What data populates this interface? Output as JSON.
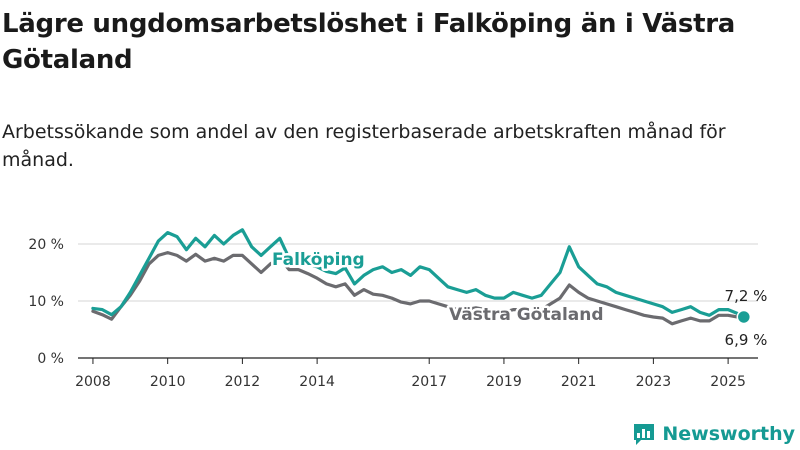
{
  "title": "Lägre ungdomsarbetslöshet i Falköping än i Västra Götaland",
  "subtitle": "Arbetssökande som andel av den registerbaserade arbetskraften månad för månad.",
  "brand": "Newsworthy",
  "colors": {
    "falkoping": "#1a9e95",
    "vastra_gotaland": "#6b6b6f",
    "grid": "#d6d6d6",
    "axis": "#222222"
  },
  "chart_data": {
    "type": "line",
    "title": "Lägre ungdomsarbetslöshet i Falköping än i Västra Götaland",
    "subtitle": "Arbetssökande som andel av den registerbaserade arbetskraften månad för månad.",
    "xlabel": "",
    "ylabel": "",
    "xlim": [
      2007.6,
      2025.8
    ],
    "ylim": [
      0,
      20
    ],
    "yticks": [
      0,
      10,
      20
    ],
    "ytick_labels": [
      "0 %",
      "10 %",
      "20 %"
    ],
    "xticks": [
      2008,
      2010,
      2012,
      2014,
      2017,
      2019,
      2021,
      2023,
      2025
    ],
    "xtick_labels": [
      "2008",
      "2010",
      "2012",
      "2014",
      "2017",
      "2019",
      "2021",
      "2023",
      "2025"
    ],
    "grid": true,
    "series": [
      {
        "name": "Falköping",
        "color": "#1a9e95",
        "end_label": "7,2 %",
        "x": [
          2008.0,
          2008.25,
          2008.5,
          2008.75,
          2009.0,
          2009.25,
          2009.5,
          2009.75,
          2010.0,
          2010.25,
          2010.5,
          2010.75,
          2011.0,
          2011.25,
          2011.5,
          2011.75,
          2012.0,
          2012.25,
          2012.5,
          2012.75,
          2013.0,
          2013.25,
          2013.5,
          2013.75,
          2014.0,
          2014.25,
          2014.5,
          2014.75,
          2015.0,
          2015.25,
          2015.5,
          2015.75,
          2016.0,
          2016.25,
          2016.5,
          2016.75,
          2017.0,
          2017.25,
          2017.5,
          2017.75,
          2018.0,
          2018.25,
          2018.5,
          2018.75,
          2019.0,
          2019.25,
          2019.5,
          2019.75,
          2020.0,
          2020.25,
          2020.5,
          2020.75,
          2021.0,
          2021.25,
          2021.5,
          2021.75,
          2022.0,
          2022.25,
          2022.5,
          2022.75,
          2023.0,
          2023.25,
          2023.5,
          2023.75,
          2024.0,
          2024.25,
          2024.5,
          2024.75,
          2025.0,
          2025.25,
          2025.42
        ],
        "values": [
          8.7,
          8.5,
          7.6,
          9.0,
          11.5,
          14.5,
          17.5,
          20.5,
          22.0,
          21.3,
          19.0,
          21.0,
          19.5,
          21.5,
          20.0,
          21.5,
          22.5,
          19.5,
          18.0,
          19.5,
          21.0,
          17.5,
          17.0,
          16.5,
          16.0,
          15.2,
          14.8,
          15.8,
          13.0,
          14.5,
          15.5,
          16.0,
          15.0,
          15.5,
          14.5,
          16.0,
          15.5,
          14.0,
          12.5,
          12.0,
          11.5,
          12.0,
          11.0,
          10.5,
          10.5,
          11.5,
          11.0,
          10.5,
          11.0,
          13.0,
          15.0,
          19.5,
          16.0,
          14.5,
          13.0,
          12.5,
          11.5,
          11.0,
          10.5,
          10.0,
          9.5,
          9.0,
          8.0,
          8.5,
          9.0,
          8.0,
          7.5,
          8.5,
          8.5,
          7.8,
          7.2
        ]
      },
      {
        "name": "Västra Götaland",
        "color": "#6b6b6f",
        "end_label": "6,9 %",
        "x": [
          2008.0,
          2008.25,
          2008.5,
          2008.75,
          2009.0,
          2009.25,
          2009.5,
          2009.75,
          2010.0,
          2010.25,
          2010.5,
          2010.75,
          2011.0,
          2011.25,
          2011.5,
          2011.75,
          2012.0,
          2012.25,
          2012.5,
          2012.75,
          2013.0,
          2013.25,
          2013.5,
          2013.75,
          2014.0,
          2014.25,
          2014.5,
          2014.75,
          2015.0,
          2015.25,
          2015.5,
          2015.75,
          2016.0,
          2016.25,
          2016.5,
          2016.75,
          2017.0,
          2017.25,
          2017.5,
          2017.75,
          2018.0,
          2018.25,
          2018.5,
          2018.75,
          2019.0,
          2019.25,
          2019.5,
          2019.75,
          2020.0,
          2020.25,
          2020.5,
          2020.75,
          2021.0,
          2021.25,
          2021.5,
          2021.75,
          2022.0,
          2022.25,
          2022.5,
          2022.75,
          2023.0,
          2023.25,
          2023.5,
          2023.75,
          2024.0,
          2024.25,
          2024.5,
          2024.75,
          2025.0,
          2025.25,
          2025.42
        ],
        "values": [
          8.2,
          7.6,
          6.8,
          9.0,
          11.0,
          13.5,
          16.5,
          18.0,
          18.5,
          18.0,
          17.0,
          18.2,
          17.0,
          17.5,
          17.0,
          18.0,
          18.0,
          16.5,
          15.0,
          16.5,
          17.5,
          15.5,
          15.5,
          14.8,
          14.0,
          13.0,
          12.5,
          13.0,
          11.0,
          12.0,
          11.2,
          11.0,
          10.5,
          9.8,
          9.5,
          10.0,
          10.0,
          9.5,
          9.0,
          8.5,
          8.5,
          8.8,
          8.5,
          8.0,
          8.0,
          8.5,
          8.5,
          8.0,
          8.5,
          9.5,
          10.5,
          12.8,
          11.5,
          10.5,
          10.0,
          9.5,
          9.0,
          8.5,
          8.0,
          7.5,
          7.2,
          7.0,
          6.0,
          6.5,
          7.0,
          6.5,
          6.5,
          7.5,
          7.5,
          7.2,
          6.9
        ]
      }
    ]
  }
}
